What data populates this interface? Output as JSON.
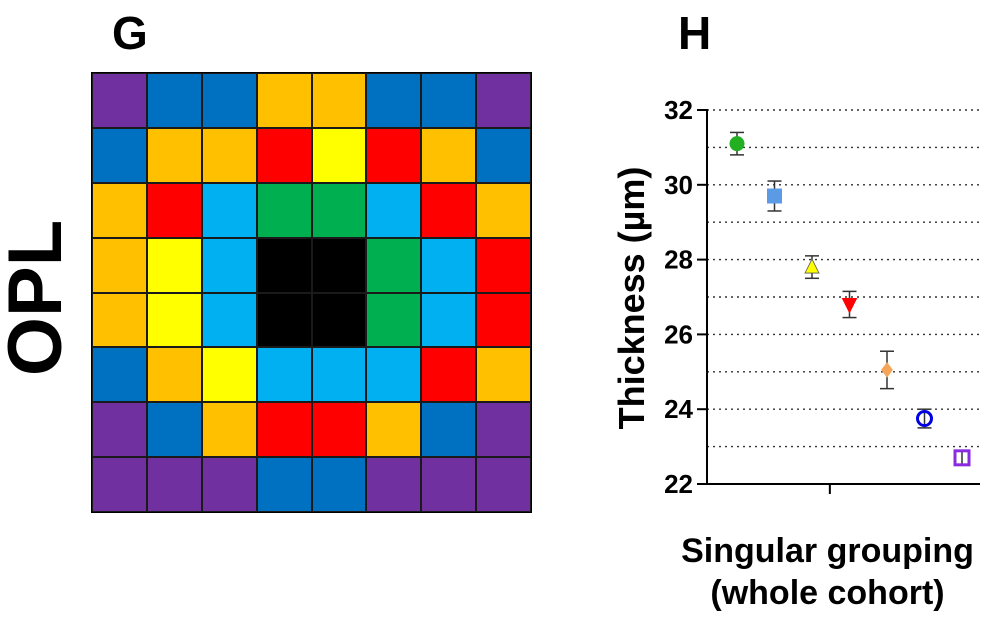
{
  "panels": {
    "g": "G",
    "h": "H"
  },
  "side_label": "OPL",
  "heatmap": {
    "colors": {
      "P": "#7030A0",
      "B": "#0070C0",
      "O": "#FFC000",
      "R": "#FF0000",
      "Y": "#FFFF00",
      "C": "#00B0F0",
      "G": "#00B050",
      "K": "#000000"
    },
    "rows": [
      [
        "P",
        "B",
        "B",
        "O",
        "O",
        "B",
        "B",
        "P"
      ],
      [
        "B",
        "O",
        "O",
        "R",
        "Y",
        "R",
        "O",
        "B"
      ],
      [
        "O",
        "R",
        "C",
        "G",
        "G",
        "C",
        "R",
        "O"
      ],
      [
        "O",
        "Y",
        "C",
        "K",
        "K",
        "G",
        "C",
        "R"
      ],
      [
        "O",
        "Y",
        "C",
        "K",
        "K",
        "G",
        "C",
        "R"
      ],
      [
        "B",
        "O",
        "Y",
        "C",
        "C",
        "C",
        "R",
        "O"
      ],
      [
        "P",
        "B",
        "O",
        "R",
        "R",
        "O",
        "B",
        "P"
      ],
      [
        "P",
        "P",
        "P",
        "B",
        "B",
        "P",
        "P",
        "P"
      ]
    ]
  },
  "chart_data": {
    "type": "scatter",
    "ylabel": "Thickness (µm)",
    "xlabel_lines": [
      "Singular grouping",
      "(whole cohort)"
    ],
    "ylim": [
      22,
      32
    ],
    "yticks": [
      "22",
      "24",
      "26",
      "28",
      "30",
      "32"
    ],
    "grid": "dotted horizontal at every 1 µm",
    "series": [
      {
        "marker": "circle",
        "color": "#22B022",
        "filled": true,
        "value": 31.1,
        "err": 0.3
      },
      {
        "marker": "square",
        "color": "#5B9BE6",
        "filled": true,
        "value": 29.7,
        "err": 0.4
      },
      {
        "marker": "triangle-up",
        "color": "#FFFF00",
        "filled": true,
        "value": 27.8,
        "err": 0.3
      },
      {
        "marker": "triangle-down",
        "color": "#FF0000",
        "filled": true,
        "value": 26.8,
        "err": 0.35
      },
      {
        "marker": "diamond",
        "color": "#F5A55A",
        "filled": true,
        "value": 25.05,
        "err": 0.5
      },
      {
        "marker": "circle",
        "color": "#0000E0",
        "filled": false,
        "value": 23.75,
        "err": 0.25
      },
      {
        "marker": "square",
        "color": "#8A2BE2",
        "filled": false,
        "value": 22.7,
        "err": 0.2
      }
    ]
  }
}
